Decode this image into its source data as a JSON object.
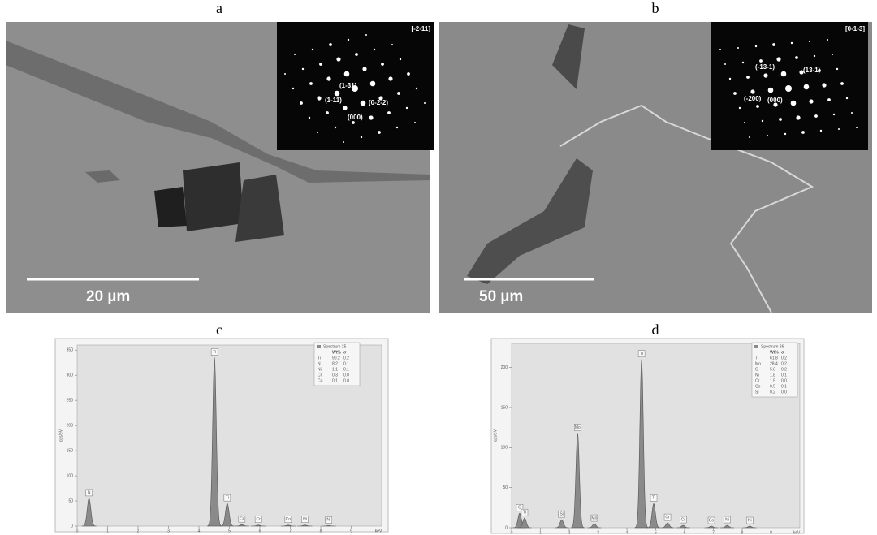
{
  "panels": [
    {
      "label": "a",
      "scale_bar": "20 µm",
      "zone_axis": "[-2-11]",
      "spots": [
        "(1-31)",
        "(1-11)",
        "(0-2-2)",
        "(000)"
      ]
    },
    {
      "label": "b",
      "scale_bar": "50 µm",
      "zone_axis": "[0-1-3]",
      "spots": [
        "(-13-1)",
        "(13-1)",
        "(-200)",
        "(000)"
      ]
    }
  ],
  "chart_data": [
    {
      "type": "spectrum",
      "label": "c",
      "legend_title": "Spectrum 25",
      "table_header": [
        "Wt%",
        "σ"
      ],
      "table": [
        [
          "Ti",
          "90.2",
          "0.2"
        ],
        [
          "N",
          "8.2",
          "0.1"
        ],
        [
          "Ni",
          "1.1",
          "0.1"
        ],
        [
          "Cr",
          "0.3",
          "0.0"
        ],
        [
          "Co",
          "0.1",
          "0.0"
        ]
      ],
      "y_label": "cps/eV",
      "x_label": "keV",
      "xlim": [
        0,
        10
      ],
      "xticks": [
        0,
        1,
        2,
        3,
        4,
        5,
        6,
        7,
        8,
        9
      ],
      "ylim": [
        0,
        360
      ],
      "yticks": [
        0,
        50,
        100,
        150,
        200,
        250,
        300,
        350
      ],
      "peaks": [
        {
          "label": "N",
          "x": 0.39,
          "value": 55
        },
        {
          "label": "Ti",
          "x": 4.51,
          "value": 335
        },
        {
          "label": "Ti",
          "x": 4.93,
          "value": 45
        },
        {
          "label": "Cr",
          "x": 5.41,
          "value": 3
        },
        {
          "label": "Cr",
          "x": 5.95,
          "value": 2
        },
        {
          "label": "Co",
          "x": 6.93,
          "value": 2
        },
        {
          "label": "Ni",
          "x": 7.48,
          "value": 2
        },
        {
          "label": "Ni",
          "x": 8.26,
          "value": 1
        }
      ]
    },
    {
      "type": "spectrum",
      "label": "d",
      "legend_title": "Spectrum 26",
      "table_header": [
        "Wt%",
        "σ"
      ],
      "table": [
        [
          "Ti",
          "61.8",
          "0.2"
        ],
        [
          "Mo",
          "28.4",
          "0.2"
        ],
        [
          "C",
          "5.0",
          "0.2"
        ],
        [
          "Ni",
          "1.8",
          "0.1"
        ],
        [
          "Cr",
          "1.5",
          "0.0"
        ],
        [
          "Co",
          "0.5",
          "0.1"
        ],
        [
          "Si",
          "0.2",
          "0.0"
        ]
      ],
      "y_label": "cps/eV",
      "x_label": "keV",
      "xlim": [
        0,
        10
      ],
      "xticks": [
        0,
        1,
        2,
        3,
        4,
        5,
        6,
        7,
        8,
        9
      ],
      "ylim": [
        0,
        230
      ],
      "yticks": [
        0,
        50,
        100,
        150,
        200
      ],
      "peaks": [
        {
          "label": "C",
          "x": 0.28,
          "value": 18
        },
        {
          "label": "Ti",
          "x": 0.45,
          "value": 12
        },
        {
          "label": "Si",
          "x": 1.74,
          "value": 10
        },
        {
          "label": "Mo",
          "x": 2.29,
          "value": 118
        },
        {
          "label": "Mo",
          "x": 2.87,
          "value": 5
        },
        {
          "label": "Ti",
          "x": 4.51,
          "value": 210
        },
        {
          "label": "Ti",
          "x": 4.93,
          "value": 30
        },
        {
          "label": "Cr",
          "x": 5.41,
          "value": 6
        },
        {
          "label": "Cr",
          "x": 5.95,
          "value": 3
        },
        {
          "label": "Co",
          "x": 6.93,
          "value": 2
        },
        {
          "label": "Ni",
          "x": 7.48,
          "value": 3
        },
        {
          "label": "Ni",
          "x": 8.26,
          "value": 2
        }
      ]
    }
  ]
}
